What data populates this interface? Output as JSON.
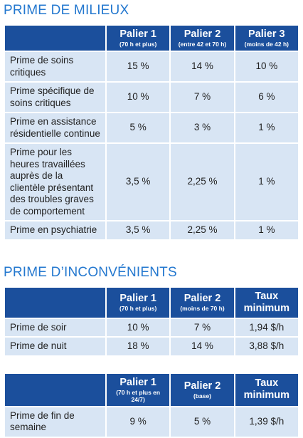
{
  "sections": [
    {
      "title": "PRIME DE MILIEUX",
      "tables": [
        {
          "header": [
            {
              "main": "Palier 1",
              "sub": "(70 h et plus)"
            },
            {
              "main": "Palier 2",
              "sub": "(entre 42 et 70 h)"
            },
            {
              "main": "Palier 3",
              "sub": "(moins de 42 h)"
            }
          ],
          "rows": [
            [
              "Prime de soins critiques",
              "15 %",
              "14 %",
              "10 %"
            ],
            [
              "Prime spécifique de soins critiques",
              "10 %",
              "7 %",
              "6 %"
            ],
            [
              "Prime en assistance résidentielle continue",
              "5 %",
              "3 %",
              "1 %"
            ],
            [
              "Prime pour les heures travaillées auprès de la clientèle présentant des troubles graves de comportement",
              "3,5 %",
              "2,25 %",
              "1 %"
            ],
            [
              "Prime en psychiatrie",
              "3,5 %",
              "2,25 %",
              "1 %"
            ]
          ]
        }
      ]
    },
    {
      "title": "PRIME D’INCONVÉNIENTS",
      "tables": [
        {
          "header": [
            {
              "main": "Palier 1",
              "sub": "(70 h et plus)"
            },
            {
              "main": "Palier 2",
              "sub": "(moins de 70 h)"
            },
            {
              "main": "Taux minimum"
            }
          ],
          "rows": [
            [
              "Prime de soir",
              "10 %",
              "7 %",
              "1,94 $/h"
            ],
            [
              "Prime de nuit",
              "18 %",
              "14 %",
              "3,88 $/h"
            ]
          ]
        },
        {
          "header": [
            {
              "main": "Palier 1",
              "sub": "(70 h et plus en 24/7)"
            },
            {
              "main": "Palier 2",
              "sub": "(base)"
            },
            {
              "main": "Taux minimum"
            }
          ],
          "rows": [
            [
              "Prime de fin de semaine",
              "9 %",
              "5 %",
              "1,39 $/h"
            ]
          ]
        }
      ]
    }
  ]
}
